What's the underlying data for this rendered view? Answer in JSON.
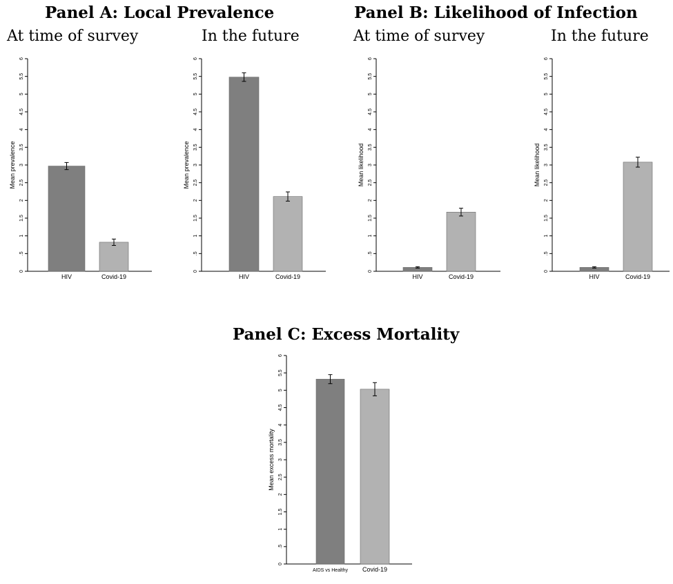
{
  "panels": {
    "a": {
      "title": "Panel A: Local Prevalence",
      "sub1": "At time of survey",
      "sub2": "In the future"
    },
    "b": {
      "title": "Panel B: Likelihood of Infection",
      "sub1": "At time of survey",
      "sub2": "In the future"
    },
    "c": {
      "title": "Panel C: Excess Mortality"
    }
  },
  "colors": {
    "dark_bar": "#7f7f7f",
    "light_bar": "#b2b2b2"
  },
  "chart_data": [
    {
      "type": "bar",
      "title": "At time of survey",
      "ylabel": "Mean prevalence",
      "ylim": [
        0,
        6
      ],
      "yticks": [
        "0",
        ".5",
        "1",
        "1.5",
        "2",
        "2.5",
        "3",
        "3.5",
        "4",
        "4.5",
        "5",
        "5.5",
        "6"
      ],
      "categories": [
        "HIV",
        "Covid-19"
      ],
      "values": [
        2.97,
        0.82
      ],
      "error_low": [
        2.87,
        0.73
      ],
      "error_high": [
        3.07,
        0.91
      ]
    },
    {
      "type": "bar",
      "title": "In the future",
      "ylabel": "Mean prevalence",
      "ylim": [
        0,
        6
      ],
      "yticks": [
        "0",
        ".5",
        "1",
        "1.5",
        "2",
        "2.5",
        "3",
        "3.5",
        "4",
        "4.5",
        "5",
        "5.5",
        "6"
      ],
      "categories": [
        "HIV",
        "Covid-19"
      ],
      "values": [
        5.48,
        2.11
      ],
      "error_low": [
        5.36,
        1.98
      ],
      "error_high": [
        5.6,
        2.24
      ]
    },
    {
      "type": "bar",
      "title": "At time of survey",
      "ylabel": "Mean likelihood",
      "ylim": [
        0,
        6
      ],
      "yticks": [
        "0",
        ".5",
        "1",
        "1.5",
        "2",
        "2.5",
        "3",
        "3.5",
        "4",
        "4.5",
        "5",
        "5.5",
        "6"
      ],
      "categories": [
        "HIV",
        "Covid-19"
      ],
      "values": [
        0.11,
        1.67
      ],
      "error_low": [
        0.09,
        1.56
      ],
      "error_high": [
        0.13,
        1.78
      ]
    },
    {
      "type": "bar",
      "title": "In the future",
      "ylabel": "Mean likelihood",
      "ylim": [
        0,
        6
      ],
      "yticks": [
        "0",
        ".5",
        "1",
        "1.5",
        "2",
        "2.5",
        "3",
        "3.5",
        "4",
        "4.5",
        "5",
        "5.5",
        "6"
      ],
      "categories": [
        "HIV",
        "Covid-19"
      ],
      "values": [
        0.11,
        3.08
      ],
      "error_low": [
        0.09,
        2.94
      ],
      "error_high": [
        0.13,
        3.22
      ]
    },
    {
      "type": "bar",
      "title": "Panel C: Excess Mortality",
      "ylabel": "Mean excess mortality",
      "ylim": [
        0,
        6
      ],
      "yticks": [
        "0",
        ".5",
        "1",
        "1.5",
        "2",
        "2.5",
        "3",
        "3.5",
        "4",
        "4.5",
        "5",
        "5.5",
        "6"
      ],
      "categories": [
        "AIDS vs Healthy",
        "Covid-19"
      ],
      "values": [
        5.32,
        5.03
      ],
      "error_low": [
        5.19,
        4.84
      ],
      "error_high": [
        5.45,
        5.22
      ]
    }
  ]
}
